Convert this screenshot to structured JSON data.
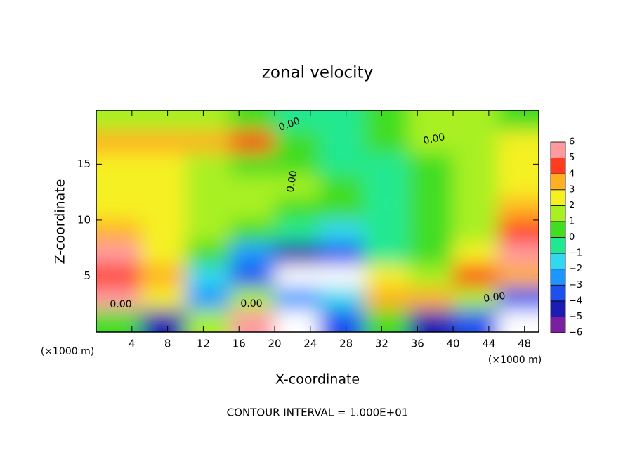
{
  "chart_data": {
    "type": "contour",
    "title": "zonal velocity",
    "x_label": "X-coordinate",
    "y_label": "Z-coordinate",
    "x_unit_label": "(×1000 m)",
    "footer": "CONTOUR INTERVAL = 1.000E+01",
    "xlim": [
      0,
      49.6
    ],
    "ylim": [
      0,
      19.8
    ],
    "xticks": [
      4,
      8,
      12,
      16,
      20,
      24,
      28,
      32,
      36,
      40,
      44,
      48
    ],
    "yticks": [
      5,
      10,
      15
    ],
    "x": [
      2.5,
      7.5,
      12.5,
      17.5,
      22.5,
      27.5,
      32.5,
      37.5,
      42.5,
      47.5
    ],
    "y": [
      1,
      3,
      5,
      7,
      9,
      11,
      13,
      15,
      17,
      19
    ],
    "values": [
      [
        0,
        -5,
        1,
        5,
        -7,
        -4,
        0,
        -5,
        -4,
        -7
      ],
      [
        5,
        2,
        -3,
        1,
        -3,
        -2,
        3,
        3,
        1,
        -4
      ],
      [
        4,
        3,
        -2,
        -4,
        -7,
        -7,
        2,
        1,
        4,
        3
      ],
      [
        5,
        2,
        0,
        -3,
        -5,
        -4,
        -1,
        0,
        2,
        5
      ],
      [
        3,
        2,
        1,
        0,
        -1,
        -2,
        -1,
        0,
        1,
        4
      ],
      [
        2,
        2,
        1,
        1,
        0,
        0,
        -1,
        0,
        1,
        3
      ],
      [
        2,
        2,
        1,
        1,
        1,
        0,
        -1,
        0,
        1,
        2
      ],
      [
        2,
        2,
        1,
        0,
        0,
        -1,
        -1,
        0,
        1,
        2
      ],
      [
        3,
        3,
        3,
        4,
        0,
        -1,
        0,
        1,
        1,
        2
      ],
      [
        1,
        1,
        1,
        0,
        -1,
        -1,
        0,
        1,
        1,
        0
      ]
    ],
    "levels": [
      -6,
      -5,
      -4,
      -3,
      -2,
      -1,
      0,
      1,
      2,
      3,
      4,
      5,
      6
    ],
    "level_labels": [
      "−6",
      "−5",
      "−4",
      "−3",
      "−2",
      "−1",
      "0",
      "1",
      "2",
      "3",
      "4",
      "5",
      "6"
    ],
    "colors": [
      "#7a1fa0",
      "#1c1cb4",
      "#1e50f0",
      "#1e96ff",
      "#30d8f0",
      "#20e890",
      "#40dd20",
      "#a8f020",
      "#f5f020",
      "#ffb020",
      "#ff3c1e",
      "#ff9aa0"
    ],
    "out_of_range_color": "#ffffff",
    "contour_labels": [
      "0.00",
      "0.00",
      "0.00",
      "0.00",
      "0.00",
      "0.00"
    ]
  }
}
